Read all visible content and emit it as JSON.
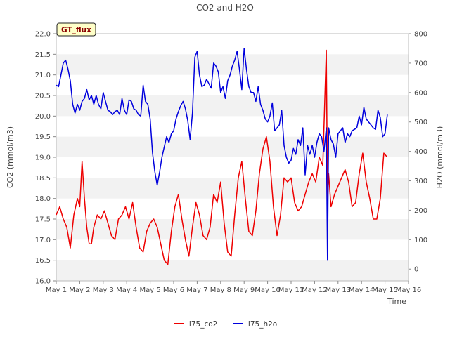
{
  "chart_data": {
    "type": "line",
    "title": "CO2 and H2O",
    "badge": "GT_flux",
    "xlabel": "Time",
    "ylabel_left": "CO2 (mmol/m3)",
    "ylabel_right": "H2O (mmol/m3)",
    "x_tick_labels": [
      "May 1",
      "May 2",
      "May 3",
      "May 4",
      "May 5",
      "May 6",
      "May 7",
      "May 8",
      "May 9",
      "May 10",
      "May 11",
      "May 12",
      "May 13",
      "May 14",
      "May 15",
      "May 16"
    ],
    "xlim": [
      1,
      16
    ],
    "ylim_left": [
      16.0,
      22.0
    ],
    "ylim_right": [
      -40,
      800
    ],
    "left_ticks": [
      "16.0",
      "16.5",
      "17.0",
      "17.5",
      "18.0",
      "18.5",
      "19.0",
      "19.5",
      "20.0",
      "20.5",
      "21.0",
      "21.5",
      "22.0"
    ],
    "right_ticks": [
      "0",
      "100",
      "200",
      "300",
      "400",
      "500",
      "600",
      "700",
      "800"
    ],
    "grid": "alternating horizontal bands",
    "legend_position": "bottom-center",
    "series": [
      {
        "name": "li75_co2",
        "axis": "left",
        "color": "#ee0000",
        "x": [
          1.0,
          1.15,
          1.3,
          1.45,
          1.6,
          1.75,
          1.9,
          2.0,
          2.1,
          2.2,
          2.3,
          2.4,
          2.5,
          2.6,
          2.75,
          2.9,
          3.05,
          3.2,
          3.35,
          3.5,
          3.65,
          3.8,
          3.95,
          4.1,
          4.25,
          4.4,
          4.55,
          4.7,
          4.85,
          5.0,
          5.15,
          5.3,
          5.45,
          5.6,
          5.75,
          5.9,
          6.05,
          6.2,
          6.35,
          6.5,
          6.65,
          6.8,
          6.95,
          7.1,
          7.25,
          7.4,
          7.55,
          7.7,
          7.85,
          8.0,
          8.15,
          8.3,
          8.45,
          8.6,
          8.75,
          8.9,
          9.05,
          9.2,
          9.35,
          9.5,
          9.65,
          9.8,
          9.95,
          10.1,
          10.25,
          10.4,
          10.55,
          10.7,
          10.85,
          11.0,
          11.15,
          11.3,
          11.45,
          11.6,
          11.75,
          11.9,
          12.05,
          12.2,
          12.35,
          12.5,
          12.55,
          12.6,
          12.7,
          12.85,
          13.0,
          13.15,
          13.3,
          13.45,
          13.6,
          13.75,
          13.9,
          14.05,
          14.2,
          14.35,
          14.5,
          14.65,
          14.8,
          14.95,
          15.1
        ],
        "y": [
          17.6,
          17.8,
          17.5,
          17.3,
          16.8,
          17.6,
          18.0,
          17.8,
          18.9,
          18.0,
          17.3,
          16.9,
          16.9,
          17.3,
          17.6,
          17.5,
          17.7,
          17.4,
          17.1,
          17.0,
          17.5,
          17.6,
          17.8,
          17.5,
          17.9,
          17.3,
          16.8,
          16.7,
          17.2,
          17.4,
          17.5,
          17.3,
          16.9,
          16.5,
          16.4,
          17.2,
          17.8,
          18.1,
          17.5,
          17.0,
          16.6,
          17.3,
          17.9,
          17.6,
          17.1,
          17.0,
          17.3,
          18.1,
          17.9,
          18.4,
          17.4,
          16.7,
          16.6,
          17.6,
          18.5,
          18.9,
          18.0,
          17.2,
          17.1,
          17.7,
          18.6,
          19.2,
          19.5,
          18.9,
          17.8,
          17.1,
          17.6,
          18.5,
          18.4,
          18.5,
          17.9,
          17.7,
          17.8,
          18.1,
          18.4,
          18.6,
          18.4,
          19.0,
          18.8,
          21.6,
          17.9,
          18.6,
          17.8,
          18.1,
          18.3,
          18.5,
          18.7,
          18.4,
          17.8,
          17.9,
          18.6,
          19.1,
          18.4,
          18.0,
          17.5,
          17.5,
          18.0,
          19.1,
          19.0
        ]
      },
      {
        "name": "li75_h2o",
        "axis": "right",
        "color": "#0000dd",
        "x": [
          1.0,
          1.1,
          1.2,
          1.3,
          1.4,
          1.5,
          1.6,
          1.7,
          1.8,
          1.9,
          2.0,
          2.1,
          2.2,
          2.3,
          2.4,
          2.5,
          2.6,
          2.7,
          2.8,
          2.9,
          3.0,
          3.1,
          3.2,
          3.3,
          3.4,
          3.5,
          3.6,
          3.7,
          3.8,
          3.9,
          4.0,
          4.1,
          4.2,
          4.3,
          4.4,
          4.5,
          4.6,
          4.7,
          4.8,
          4.9,
          5.0,
          5.1,
          5.2,
          5.3,
          5.4,
          5.5,
          5.6,
          5.7,
          5.8,
          5.9,
          6.0,
          6.1,
          6.2,
          6.3,
          6.4,
          6.5,
          6.6,
          6.7,
          6.8,
          6.9,
          7.0,
          7.1,
          7.2,
          7.3,
          7.4,
          7.5,
          7.6,
          7.7,
          7.8,
          7.9,
          8.0,
          8.1,
          8.2,
          8.3,
          8.4,
          8.5,
          8.6,
          8.7,
          8.8,
          8.9,
          9.0,
          9.1,
          9.2,
          9.3,
          9.4,
          9.5,
          9.6,
          9.7,
          9.8,
          9.9,
          10.0,
          10.1,
          10.2,
          10.3,
          10.4,
          10.5,
          10.6,
          10.7,
          10.8,
          10.9,
          11.0,
          11.1,
          11.2,
          11.3,
          11.4,
          11.5,
          11.6,
          11.7,
          11.8,
          11.9,
          12.0,
          12.1,
          12.2,
          12.3,
          12.4,
          12.5,
          12.55,
          12.6,
          12.7,
          12.8,
          12.9,
          13.0,
          13.1,
          13.2,
          13.3,
          13.4,
          13.5,
          13.6,
          13.7,
          13.8,
          13.9,
          14.0,
          14.1,
          14.2,
          14.3,
          14.4,
          14.5,
          14.6,
          14.7,
          14.8,
          14.9,
          15.0,
          15.1
        ],
        "y": [
          625,
          620,
          660,
          700,
          710,
          680,
          640,
          560,
          530,
          560,
          540,
          570,
          580,
          610,
          575,
          590,
          560,
          590,
          560,
          545,
          600,
          570,
          540,
          535,
          525,
          535,
          540,
          525,
          580,
          540,
          525,
          575,
          570,
          545,
          540,
          525,
          520,
          625,
          570,
          560,
          510,
          395,
          330,
          285,
          330,
          380,
          415,
          450,
          430,
          460,
          470,
          510,
          535,
          555,
          570,
          545,
          505,
          440,
          530,
          720,
          740,
          660,
          620,
          625,
          645,
          630,
          615,
          700,
          690,
          670,
          600,
          620,
          580,
          640,
          660,
          690,
          710,
          740,
          680,
          610,
          750,
          680,
          620,
          600,
          600,
          570,
          620,
          560,
          540,
          510,
          500,
          520,
          565,
          470,
          480,
          490,
          540,
          420,
          380,
          360,
          370,
          410,
          390,
          440,
          420,
          480,
          320,
          420,
          390,
          420,
          380,
          430,
          460,
          450,
          400,
          480,
          30,
          480,
          440,
          425,
          380,
          460,
          470,
          480,
          430,
          460,
          450,
          470,
          475,
          480,
          520,
          490,
          550,
          510,
          500,
          490,
          480,
          475,
          540,
          515,
          450,
          460,
          525
        ]
      }
    ]
  }
}
